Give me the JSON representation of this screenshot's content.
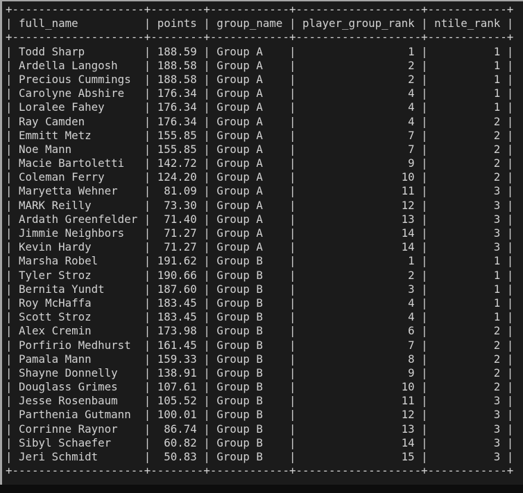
{
  "window": {
    "page_background": "#0d0d0d",
    "terminal_background": "#1b1b1b",
    "edge_color": "#a6a6a6",
    "text_color": "#d3d3d3"
  },
  "table": {
    "columns": [
      {
        "label": "full_name",
        "width": 20,
        "align": "left"
      },
      {
        "label": "points",
        "width": 8,
        "align": "right"
      },
      {
        "label": "group_name",
        "width": 12,
        "align": "left"
      },
      {
        "label": "player_group_rank",
        "width": 19,
        "align": "right"
      },
      {
        "label": "ntile_rank",
        "width": 12,
        "align": "right"
      }
    ],
    "rows": [
      [
        "Todd Sharp",
        "188.59",
        "Group A",
        "1",
        "1"
      ],
      [
        "Ardella Langosh",
        "188.58",
        "Group A",
        "2",
        "1"
      ],
      [
        "Precious Cummings",
        "188.58",
        "Group A",
        "2",
        "1"
      ],
      [
        "Carolyne Abshire",
        "176.34",
        "Group A",
        "4",
        "1"
      ],
      [
        "Loralee Fahey",
        "176.34",
        "Group A",
        "4",
        "1"
      ],
      [
        "Ray Camden",
        "176.34",
        "Group A",
        "4",
        "2"
      ],
      [
        "Emmitt Metz",
        "155.85",
        "Group A",
        "7",
        "2"
      ],
      [
        "Noe Mann",
        "155.85",
        "Group A",
        "7",
        "2"
      ],
      [
        "Macie Bartoletti",
        "142.72",
        "Group A",
        "9",
        "2"
      ],
      [
        "Coleman Ferry",
        "124.20",
        "Group A",
        "10",
        "2"
      ],
      [
        "Maryetta Wehner",
        "81.09",
        "Group A",
        "11",
        "3"
      ],
      [
        "MARK Reilly",
        "73.30",
        "Group A",
        "12",
        "3"
      ],
      [
        "Ardath Greenfelder",
        "71.40",
        "Group A",
        "13",
        "3"
      ],
      [
        "Jimmie Neighbors",
        "71.27",
        "Group A",
        "14",
        "3"
      ],
      [
        "Kevin Hardy",
        "71.27",
        "Group A",
        "14",
        "3"
      ],
      [
        "Marsha Robel",
        "191.62",
        "Group B",
        "1",
        "1"
      ],
      [
        "Tyler Stroz",
        "190.66",
        "Group B",
        "2",
        "1"
      ],
      [
        "Bernita Yundt",
        "187.60",
        "Group B",
        "3",
        "1"
      ],
      [
        "Roy McHaffa",
        "183.45",
        "Group B",
        "4",
        "1"
      ],
      [
        "Scott Stroz",
        "183.45",
        "Group B",
        "4",
        "1"
      ],
      [
        "Alex Cremin",
        "173.98",
        "Group B",
        "6",
        "2"
      ],
      [
        "Porfirio Medhurst",
        "161.45",
        "Group B",
        "7",
        "2"
      ],
      [
        "Pamala Mann",
        "159.33",
        "Group B",
        "8",
        "2"
      ],
      [
        "Shayne Donnelly",
        "138.91",
        "Group B",
        "9",
        "2"
      ],
      [
        "Douglass Grimes",
        "107.61",
        "Group B",
        "10",
        "2"
      ],
      [
        "Jesse Rosenbaum",
        "105.52",
        "Group B",
        "11",
        "3"
      ],
      [
        "Parthenia Gutmann",
        "100.01",
        "Group B",
        "12",
        "3"
      ],
      [
        "Corrinne Raynor",
        "86.74",
        "Group B",
        "13",
        "3"
      ],
      [
        "Sibyl Schaefer",
        "60.82",
        "Group B",
        "14",
        "3"
      ],
      [
        "Jeri Schmidt",
        "50.83",
        "Group B",
        "15",
        "3"
      ]
    ]
  }
}
